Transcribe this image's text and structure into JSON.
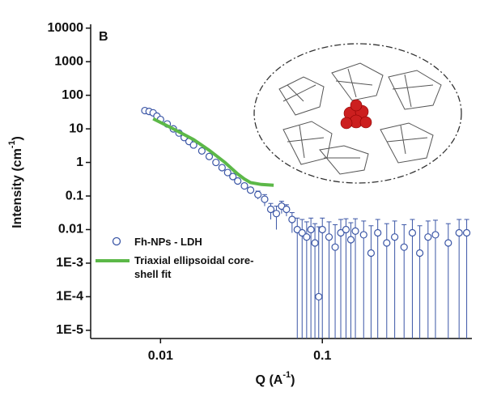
{
  "chart_data": {
    "type": "scatter",
    "panel_label": "B",
    "xlabel": {
      "text": "Q (A",
      "sup": "-1",
      "tail": ")"
    },
    "ylabel": {
      "text": "Intensity (cm",
      "sup": "-1",
      "tail": ")"
    },
    "log_x": true,
    "log_y": true,
    "xlim": [
      0.0037,
      0.84
    ],
    "ylim": [
      5.7e-06,
      13000
    ],
    "xticks": [
      0.01,
      0.1
    ],
    "yticks": [
      10000,
      1000,
      100,
      10,
      1,
      0.1,
      0.01,
      {
        "value": 0.001,
        "label": "1E-3"
      },
      {
        "value": 0.0001,
        "label": "1E-4"
      },
      {
        "value": 1e-05,
        "label": "1E-5"
      }
    ],
    "series": [
      {
        "name": "Fh-NPs - LDH",
        "color": "#3b56a6",
        "style": "markers",
        "x": [
          0.008,
          0.0085,
          0.009,
          0.0095,
          0.01,
          0.011,
          0.012,
          0.013,
          0.014,
          0.015,
          0.016,
          0.018,
          0.02,
          0.022,
          0.024,
          0.026,
          0.028,
          0.03,
          0.033,
          0.036,
          0.04,
          0.044,
          0.048,
          0.052,
          0.056,
          0.06,
          0.065,
          0.07,
          0.075,
          0.08,
          0.085,
          0.09,
          0.095,
          0.1,
          0.11,
          0.12,
          0.13,
          0.14,
          0.15,
          0.16,
          0.18,
          0.2,
          0.22,
          0.25,
          0.28,
          0.32,
          0.36,
          0.4,
          0.45,
          0.5,
          0.6,
          0.7,
          0.78
        ],
        "values": [
          35,
          33,
          30,
          24,
          19,
          14,
          10,
          7.5,
          5.5,
          4.2,
          3.3,
          2.2,
          1.5,
          1.0,
          0.7,
          0.5,
          0.38,
          0.28,
          0.2,
          0.15,
          0.11,
          0.08,
          0.04,
          0.03,
          0.05,
          0.04,
          0.02,
          0.01,
          0.008,
          0.006,
          0.01,
          0.004,
          0.0001,
          0.01,
          0.006,
          0.003,
          0.008,
          0.01,
          0.005,
          0.009,
          0.007,
          0.002,
          0.008,
          0.004,
          0.006,
          0.003,
          0.008,
          0.002,
          0.006,
          0.007,
          0.004,
          0.008,
          0.008
        ],
        "errors": [
          4,
          4,
          3,
          3,
          2,
          1.5,
          1,
          0.8,
          0.6,
          0.4,
          0.3,
          0.2,
          0.15,
          0.1,
          0.07,
          0.05,
          0.04,
          0.03,
          0.03,
          0.03,
          0.03,
          0.03,
          0.02,
          0.02,
          0.02,
          0.015,
          0.012,
          0.012,
          0.012,
          0.011,
          0.012,
          0.011,
          0.012,
          0.012,
          0.011,
          0.011,
          0.012,
          0.011,
          0.011,
          0.012,
          0.011,
          0.011,
          0.012,
          0.011,
          0.012,
          0.011,
          0.012,
          0.011,
          0.012,
          0.012,
          0.011,
          0.012,
          0.012
        ]
      },
      {
        "name": "Triaxial ellipsoidal core-shell fit",
        "color": "#5cb848",
        "style": "line",
        "x": [
          0.009,
          0.012,
          0.016,
          0.02,
          0.025,
          0.03,
          0.033,
          0.036,
          0.042,
          0.05
        ],
        "values": [
          20,
          10,
          4.8,
          2.3,
          1.0,
          0.45,
          0.32,
          0.25,
          0.22,
          0.21
        ]
      }
    ]
  }
}
